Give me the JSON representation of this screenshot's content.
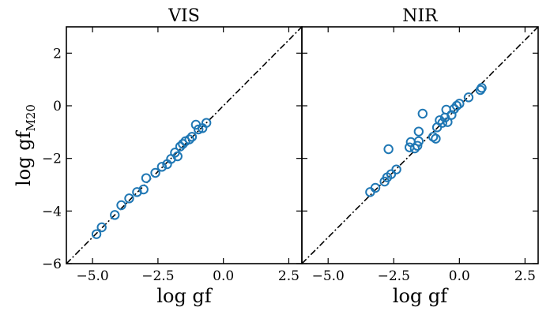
{
  "chart_data": [
    {
      "type": "scatter",
      "title": "VIS",
      "xlabel": "log gf",
      "ylabel_main": "log gf",
      "ylabel_sub": "M20",
      "xlim": [
        -6.0,
        3.0
      ],
      "ylim": [
        -6.0,
        3.0
      ],
      "x_ticks": [
        -5.0,
        -2.5,
        0.0,
        2.5
      ],
      "x_tick_labels": [
        "−5.0",
        "−2.5",
        "0.0",
        "2.5"
      ],
      "y_ticks": [
        -6,
        -4,
        -2,
        0,
        2
      ],
      "y_tick_labels": [
        "−6",
        "−4",
        "−2",
        "0",
        "2"
      ],
      "reference_line": "one-to-one dash-dot",
      "marker": "open circle",
      "marker_color": "#1f77b4",
      "line_color": "#000000",
      "points": [
        {
          "x": -4.85,
          "y": -4.88
        },
        {
          "x": -4.65,
          "y": -4.62
        },
        {
          "x": -4.15,
          "y": -4.15
        },
        {
          "x": -3.9,
          "y": -3.78
        },
        {
          "x": -3.6,
          "y": -3.52
        },
        {
          "x": -3.3,
          "y": -3.28
        },
        {
          "x": -3.05,
          "y": -3.18
        },
        {
          "x": -2.95,
          "y": -2.75
        },
        {
          "x": -2.6,
          "y": -2.55
        },
        {
          "x": -2.35,
          "y": -2.32
        },
        {
          "x": -2.15,
          "y": -2.22
        },
        {
          "x": -2.0,
          "y": -2.02
        },
        {
          "x": -1.85,
          "y": -1.78
        },
        {
          "x": -1.75,
          "y": -1.92
        },
        {
          "x": -1.65,
          "y": -1.55
        },
        {
          "x": -1.55,
          "y": -1.45
        },
        {
          "x": -1.45,
          "y": -1.35
        },
        {
          "x": -1.3,
          "y": -1.28
        },
        {
          "x": -1.2,
          "y": -1.18
        },
        {
          "x": -1.05,
          "y": -0.72
        },
        {
          "x": -0.95,
          "y": -0.9
        },
        {
          "x": -0.8,
          "y": -0.85
        },
        {
          "x": -0.65,
          "y": -0.65
        }
      ]
    },
    {
      "type": "scatter",
      "title": "NIR",
      "xlabel": "log gf",
      "xlim": [
        -6.0,
        3.0
      ],
      "ylim": [
        -6.0,
        3.0
      ],
      "x_ticks": [
        -5.0,
        -2.5,
        0.0,
        2.5
      ],
      "x_tick_labels": [
        "−5.0",
        "−2.5",
        "0.0",
        "2.5"
      ],
      "y_ticks": [
        -6,
        -4,
        -2,
        0,
        2
      ],
      "reference_line": "one-to-one dash-dot",
      "marker": "open circle",
      "marker_color": "#1f77b4",
      "line_color": "#000000",
      "points": [
        {
          "x": -3.4,
          "y": -3.28
        },
        {
          "x": -3.2,
          "y": -3.12
        },
        {
          "x": -2.85,
          "y": -2.88
        },
        {
          "x": -2.6,
          "y": -2.6
        },
        {
          "x": -2.4,
          "y": -2.42
        },
        {
          "x": -2.7,
          "y": -1.65
        },
        {
          "x": -2.75,
          "y": -2.72
        },
        {
          "x": -1.9,
          "y": -1.58
        },
        {
          "x": -1.85,
          "y": -1.38
        },
        {
          "x": -1.7,
          "y": -1.62
        },
        {
          "x": -1.6,
          "y": -1.52
        },
        {
          "x": -1.55,
          "y": -1.35
        },
        {
          "x": -1.55,
          "y": -0.98
        },
        {
          "x": -1.4,
          "y": -0.3
        },
        {
          "x": -1.0,
          "y": -1.18
        },
        {
          "x": -0.9,
          "y": -1.25
        },
        {
          "x": -0.85,
          "y": -0.82
        },
        {
          "x": -0.75,
          "y": -0.55
        },
        {
          "x": -0.65,
          "y": -0.65
        },
        {
          "x": -0.55,
          "y": -0.45
        },
        {
          "x": -0.5,
          "y": -0.15
        },
        {
          "x": -0.45,
          "y": -0.62
        },
        {
          "x": -0.3,
          "y": -0.35
        },
        {
          "x": -0.2,
          "y": -0.12
        },
        {
          "x": -0.1,
          "y": 0.0
        },
        {
          "x": 0.0,
          "y": 0.08
        },
        {
          "x": 0.35,
          "y": 0.32
        },
        {
          "x": 0.8,
          "y": 0.6
        },
        {
          "x": 0.85,
          "y": 0.68
        }
      ]
    }
  ]
}
